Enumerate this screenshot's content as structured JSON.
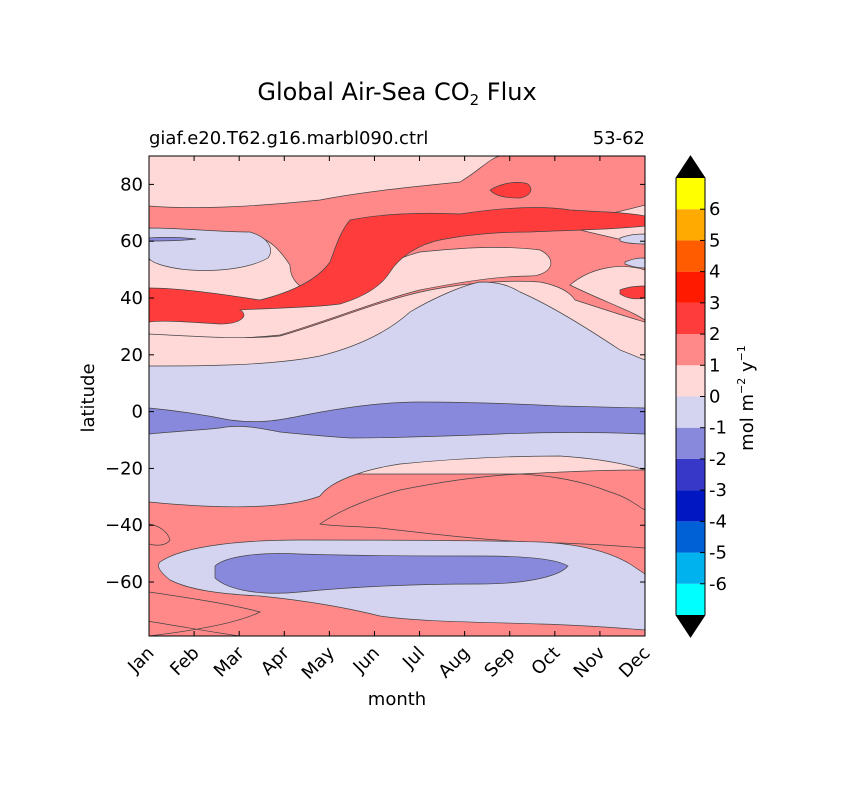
{
  "chart_data": {
    "type": "heatmap",
    "subtype": "filled-contour",
    "title_prefix": "Global Air-Sea CO",
    "title_subscript": "2",
    "title_suffix": " Flux",
    "subtitle_left": "giaf.e20.T62.g16.marbl090.ctrl",
    "subtitle_right": "53-62",
    "xlabel": "month",
    "ylabel": "latitude",
    "x_categories": [
      "Jan",
      "Feb",
      "Mar",
      "Apr",
      "May",
      "Jun",
      "Jul",
      "Aug",
      "Sep",
      "Oct",
      "Nov",
      "Dec"
    ],
    "xlim": [
      0.5,
      11.5
    ],
    "ylim": [
      -79,
      90
    ],
    "y_ticks": [
      80,
      60,
      40,
      20,
      0,
      -20,
      -40,
      -60
    ],
    "colorbar": {
      "label": "mol m^-2 y^-1",
      "levels": [
        -7,
        -6,
        -5,
        -4,
        -3,
        -2,
        -1,
        0,
        1,
        2,
        3,
        4,
        5,
        6,
        7
      ],
      "tick_labels": [
        "-6",
        "-5",
        "-4",
        "-3",
        "-2",
        "-1",
        "0",
        "1",
        "2",
        "3",
        "4",
        "5",
        "6"
      ],
      "colors": [
        "#00ffff",
        "#00b2ee",
        "#0060d6",
        "#0017c2",
        "#3838c8",
        "#8888dd",
        "#d4d4f0",
        "#ffd8d8",
        "#ff8888",
        "#ff3c3c",
        "#ff1a00",
        "#ff5c00",
        "#ffaa00",
        "#ffff00"
      ],
      "over_color": "#000000",
      "under_color": "#000000"
    },
    "regions": [
      {
        "value_band": "0 to 1",
        "description": "background, low positive flux",
        "color": "#ffd8d8"
      },
      {
        "value_band": "-1 to 0",
        "description": "tropical/subtropical uptake band",
        "color": "#d4d4f0"
      },
      {
        "value_band": "-1 to 0",
        "description": "northern high-latitude winter patch",
        "color": "#d4d4f0"
      },
      {
        "value_band": "-1 to 0",
        "description": "southern ocean band",
        "color": "#d4d4f0"
      },
      {
        "value_band": "-2 to -1",
        "description": "equatorial band",
        "color": "#8888dd"
      },
      {
        "value_band": "-2 to -1",
        "description": "southern ocean core",
        "color": "#8888dd"
      },
      {
        "value_band": "1 to 2",
        "description": "northern mid-latitude band",
        "color": "#ff8888"
      },
      {
        "value_band": "1 to 2",
        "description": "southern subtropical band",
        "color": "#ff8888"
      },
      {
        "value_band": "2 to 3",
        "description": "northern summer maximum",
        "color": "#ff3c3c"
      }
    ]
  }
}
